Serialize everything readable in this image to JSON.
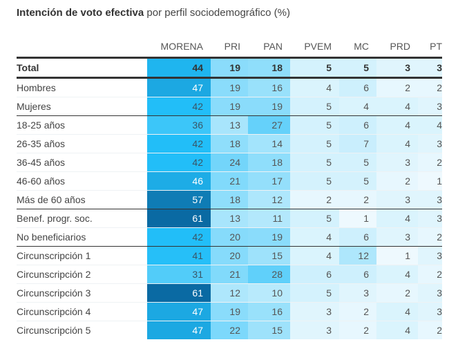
{
  "title_bold": "Intención de voto efectiva",
  "title_rest": " por perfil sociodemográfico (%)",
  "chart_data": {
    "type": "heatmap",
    "title": "Intención de voto efectiva por perfil sociodemográfico (%)",
    "columns": [
      "MORENA",
      "PRI",
      "PAN",
      "PVEM",
      "MC",
      "PRD",
      "PT"
    ],
    "rows": [
      {
        "label": "Total",
        "values": [
          44,
          19,
          18,
          5,
          5,
          3,
          3
        ],
        "total": true
      },
      {
        "label": "Hombres",
        "values": [
          47,
          19,
          16,
          4,
          6,
          2,
          2
        ]
      },
      {
        "label": "Mujeres",
        "values": [
          42,
          19,
          19,
          5,
          4,
          4,
          3
        ],
        "sep": true
      },
      {
        "label": "18-25 años",
        "values": [
          36,
          13,
          27,
          5,
          6,
          4,
          4
        ]
      },
      {
        "label": "26-35 años",
        "values": [
          42,
          18,
          14,
          5,
          7,
          4,
          3
        ]
      },
      {
        "label": "36-45 años",
        "values": [
          42,
          24,
          18,
          5,
          5,
          3,
          2
        ]
      },
      {
        "label": "46-60 años",
        "values": [
          46,
          21,
          17,
          5,
          5,
          2,
          1
        ]
      },
      {
        "label": "Más de 60 años",
        "values": [
          57,
          18,
          12,
          2,
          2,
          3,
          3
        ],
        "sep": true
      },
      {
        "label": "Benef. progr. soc.",
        "values": [
          61,
          13,
          11,
          5,
          1,
          4,
          3
        ]
      },
      {
        "label": "No beneficiarios",
        "values": [
          42,
          20,
          19,
          4,
          6,
          3,
          2
        ],
        "sep": true
      },
      {
        "label": "Circunscripción 1",
        "values": [
          41,
          20,
          15,
          4,
          12,
          1,
          3
        ]
      },
      {
        "label": "Circunscripción 2",
        "values": [
          31,
          21,
          28,
          6,
          6,
          4,
          2
        ]
      },
      {
        "label": "Circunscripción 3",
        "values": [
          61,
          12,
          10,
          5,
          3,
          2,
          3
        ]
      },
      {
        "label": "Circunscripción 4",
        "values": [
          47,
          19,
          16,
          3,
          2,
          4,
          3
        ]
      },
      {
        "label": "Circunscripción 5",
        "values": [
          47,
          22,
          15,
          3,
          2,
          4,
          2
        ]
      }
    ],
    "color_scale": {
      "low": "#f7fcfe",
      "mid": "#22bef8",
      "high": "#0a6aa3"
    }
  }
}
